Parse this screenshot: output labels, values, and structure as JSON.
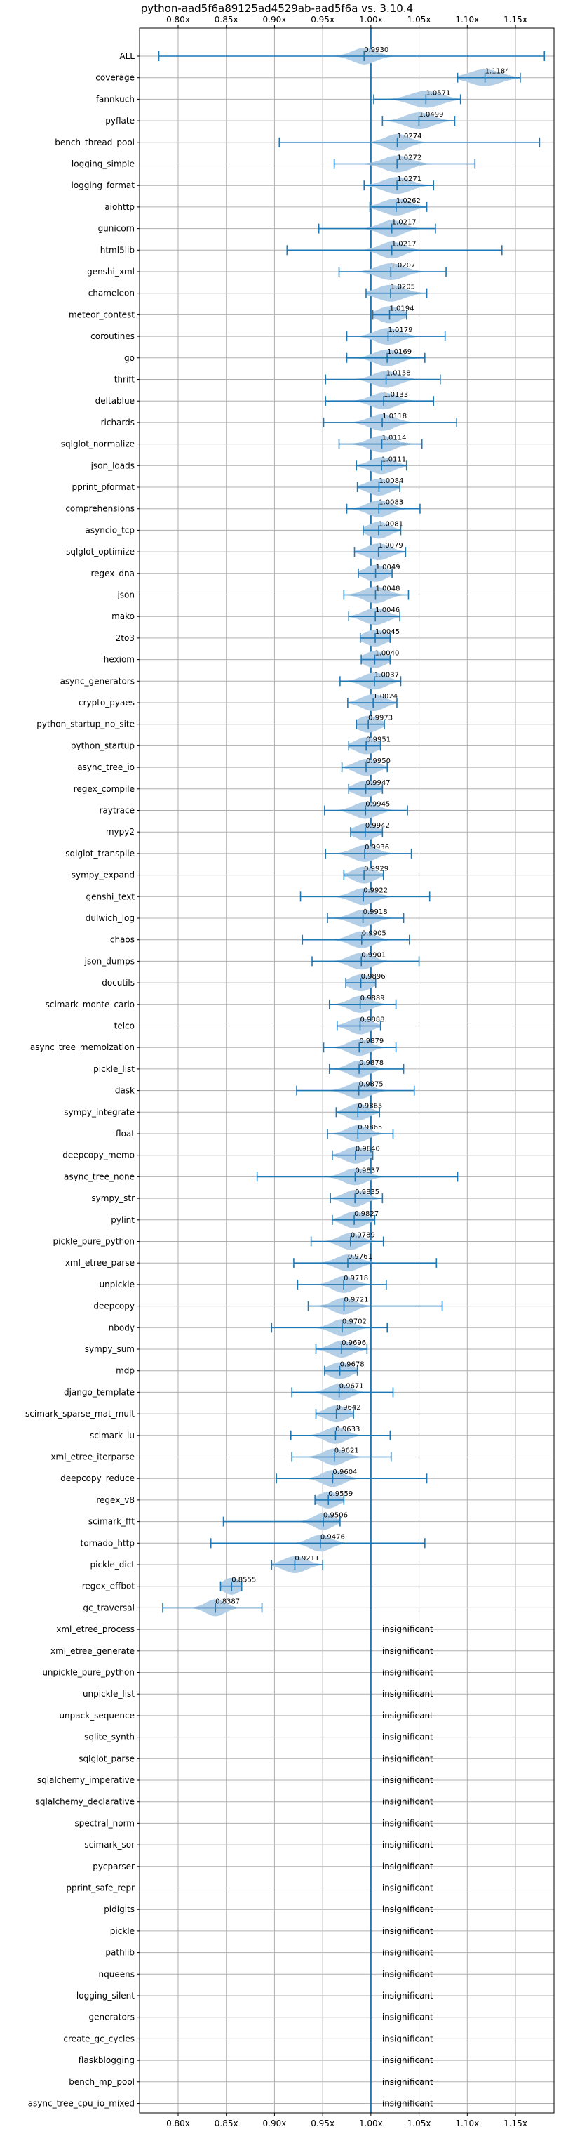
{
  "chart_data": {
    "type": "violin",
    "title": "python-aad5f6a89125ad4529ab-aad5f6a vs. 3.10.4",
    "xlabel": "",
    "ylabel": "",
    "xlim": [
      0.76,
      1.19
    ],
    "grid": true,
    "reference_line": 1.0,
    "x_ticks": [
      {
        "value": 0.8,
        "label": "0.80x"
      },
      {
        "value": 0.85,
        "label": "0.85x"
      },
      {
        "value": 0.9,
        "label": "0.90x"
      },
      {
        "value": 0.95,
        "label": "0.95x"
      },
      {
        "value": 1.0,
        "label": "1.00x"
      },
      {
        "value": 1.05,
        "label": "1.05x"
      },
      {
        "value": 1.1,
        "label": "1.10x"
      },
      {
        "value": 1.15,
        "label": "1.15x"
      }
    ],
    "colors": {
      "violin": "#b3cfe8",
      "line": "#1f77b4",
      "grid": "#b0b0b0",
      "text": "#000000"
    },
    "insignificant_label": "insignificant",
    "benchmarks": [
      {
        "name": "ALL",
        "mean": 0.993,
        "min": 0.78,
        "max": 1.18,
        "w": 0.012
      },
      {
        "name": "coverage",
        "mean": 1.1184,
        "min": 1.09,
        "max": 1.155,
        "w": 0.016
      },
      {
        "name": "fannkuch",
        "mean": 1.0571,
        "min": 1.003,
        "max": 1.093,
        "w": 0.016
      },
      {
        "name": "pyflate",
        "mean": 1.0499,
        "min": 1.012,
        "max": 1.087,
        "w": 0.014
      },
      {
        "name": "bench_thread_pool",
        "mean": 1.0274,
        "min": 0.905,
        "max": 1.175,
        "w": 0.012
      },
      {
        "name": "logging_simple",
        "mean": 1.0272,
        "min": 0.962,
        "max": 1.108,
        "w": 0.014
      },
      {
        "name": "logging_format",
        "mean": 1.0271,
        "min": 0.993,
        "max": 1.065,
        "w": 0.014
      },
      {
        "name": "aiohttp",
        "mean": 1.0262,
        "min": 0.999,
        "max": 1.058,
        "w": 0.014
      },
      {
        "name": "gunicorn",
        "mean": 1.0217,
        "min": 0.946,
        "max": 1.067,
        "w": 0.012
      },
      {
        "name": "html5lib",
        "mean": 1.0217,
        "min": 0.913,
        "max": 1.136,
        "w": 0.012
      },
      {
        "name": "genshi_xml",
        "mean": 1.0207,
        "min": 0.967,
        "max": 1.078,
        "w": 0.014
      },
      {
        "name": "chameleon",
        "mean": 1.0205,
        "min": 0.995,
        "max": 1.058,
        "w": 0.014
      },
      {
        "name": "meteor_contest",
        "mean": 1.0194,
        "min": 1.002,
        "max": 1.037,
        "w": 0.012
      },
      {
        "name": "coroutines",
        "mean": 1.0179,
        "min": 0.975,
        "max": 1.077,
        "w": 0.013
      },
      {
        "name": "go",
        "mean": 1.0169,
        "min": 0.975,
        "max": 1.056,
        "w": 0.013
      },
      {
        "name": "thrift",
        "mean": 1.0158,
        "min": 0.953,
        "max": 1.072,
        "w": 0.013
      },
      {
        "name": "deltablue",
        "mean": 1.0133,
        "min": 0.953,
        "max": 1.065,
        "w": 0.013
      },
      {
        "name": "richards",
        "mean": 1.0118,
        "min": 0.951,
        "max": 1.089,
        "w": 0.013
      },
      {
        "name": "sqlglot_normalize",
        "mean": 1.0114,
        "min": 0.967,
        "max": 1.053,
        "w": 0.013
      },
      {
        "name": "json_loads",
        "mean": 1.0111,
        "min": 0.985,
        "max": 1.037,
        "w": 0.012
      },
      {
        "name": "pprint_pformat",
        "mean": 1.0084,
        "min": 0.986,
        "max": 1.03,
        "w": 0.012
      },
      {
        "name": "comprehensions",
        "mean": 1.0083,
        "min": 0.975,
        "max": 1.051,
        "w": 0.012
      },
      {
        "name": "asyncio_tcp",
        "mean": 1.0081,
        "min": 0.992,
        "max": 1.031,
        "w": 0.011
      },
      {
        "name": "sqlglot_optimize",
        "mean": 1.0079,
        "min": 0.983,
        "max": 1.036,
        "w": 0.012
      },
      {
        "name": "regex_dna",
        "mean": 1.0049,
        "min": 0.987,
        "max": 1.022,
        "w": 0.011
      },
      {
        "name": "json",
        "mean": 1.0048,
        "min": 0.972,
        "max": 1.039,
        "w": 0.012
      },
      {
        "name": "mako",
        "mean": 1.0046,
        "min": 0.977,
        "max": 1.03,
        "w": 0.012
      },
      {
        "name": "2to3",
        "mean": 1.0045,
        "min": 0.989,
        "max": 1.02,
        "w": 0.011
      },
      {
        "name": "hexiom",
        "mean": 1.004,
        "min": 0.99,
        "max": 1.02,
        "w": 0.011
      },
      {
        "name": "async_generators",
        "mean": 1.0037,
        "min": 0.968,
        "max": 1.031,
        "w": 0.012
      },
      {
        "name": "crypto_pyaes",
        "mean": 1.0024,
        "min": 0.976,
        "max": 1.027,
        "w": 0.012
      },
      {
        "name": "python_startup_no_site",
        "mean": 0.9973,
        "min": 0.985,
        "max": 1.014,
        "w": 0.011
      },
      {
        "name": "python_startup",
        "mean": 0.9951,
        "min": 0.977,
        "max": 1.01,
        "w": 0.011
      },
      {
        "name": "async_tree_io",
        "mean": 0.995,
        "min": 0.97,
        "max": 1.017,
        "w": 0.011
      },
      {
        "name": "regex_compile",
        "mean": 0.9947,
        "min": 0.977,
        "max": 1.012,
        "w": 0.011
      },
      {
        "name": "raytrace",
        "mean": 0.9945,
        "min": 0.952,
        "max": 1.038,
        "w": 0.012
      },
      {
        "name": "mypy2",
        "mean": 0.9942,
        "min": 0.979,
        "max": 1.012,
        "w": 0.011
      },
      {
        "name": "sqlglot_transpile",
        "mean": 0.9936,
        "min": 0.953,
        "max": 1.042,
        "w": 0.012
      },
      {
        "name": "sympy_expand",
        "mean": 0.9929,
        "min": 0.972,
        "max": 1.013,
        "w": 0.011
      },
      {
        "name": "genshi_text",
        "mean": 0.9922,
        "min": 0.927,
        "max": 1.061,
        "w": 0.012
      },
      {
        "name": "dulwich_log",
        "mean": 0.9918,
        "min": 0.955,
        "max": 1.034,
        "w": 0.012
      },
      {
        "name": "chaos",
        "mean": 0.9905,
        "min": 0.929,
        "max": 1.04,
        "w": 0.012
      },
      {
        "name": "json_dumps",
        "mean": 0.9901,
        "min": 0.939,
        "max": 1.05,
        "w": 0.012
      },
      {
        "name": "docutils",
        "mean": 0.9896,
        "min": 0.974,
        "max": 1.005,
        "w": 0.011
      },
      {
        "name": "scimark_monte_carlo",
        "mean": 0.9889,
        "min": 0.957,
        "max": 1.026,
        "w": 0.011
      },
      {
        "name": "telco",
        "mean": 0.9888,
        "min": 0.965,
        "max": 1.01,
        "w": 0.011
      },
      {
        "name": "async_tree_memoization",
        "mean": 0.9879,
        "min": 0.951,
        "max": 1.026,
        "w": 0.011
      },
      {
        "name": "pickle_list",
        "mean": 0.9878,
        "min": 0.957,
        "max": 1.034,
        "w": 0.011
      },
      {
        "name": "dask",
        "mean": 0.9875,
        "min": 0.923,
        "max": 1.045,
        "w": 0.012
      },
      {
        "name": "sympy_integrate",
        "mean": 0.9865,
        "min": 0.964,
        "max": 1.009,
        "w": 0.011
      },
      {
        "name": "float",
        "mean": 0.9865,
        "min": 0.955,
        "max": 1.023,
        "w": 0.011
      },
      {
        "name": "deepcopy_memo",
        "mean": 0.984,
        "min": 0.96,
        "max": 1.002,
        "w": 0.011
      },
      {
        "name": "async_tree_none",
        "mean": 0.9837,
        "min": 0.882,
        "max": 1.09,
        "w": 0.012
      },
      {
        "name": "sympy_str",
        "mean": 0.9835,
        "min": 0.958,
        "max": 1.012,
        "w": 0.011
      },
      {
        "name": "pylint",
        "mean": 0.9827,
        "min": 0.96,
        "max": 1.004,
        "w": 0.011
      },
      {
        "name": "pickle_pure_python",
        "mean": 0.9789,
        "min": 0.938,
        "max": 1.013,
        "w": 0.011
      },
      {
        "name": "xml_etree_parse",
        "mean": 0.9761,
        "min": 0.92,
        "max": 1.068,
        "w": 0.012
      },
      {
        "name": "unpickle",
        "mean": 0.9718,
        "min": 0.924,
        "max": 1.016,
        "w": 0.011
      },
      {
        "name": "deepcopy",
        "mean": 0.9721,
        "min": 0.935,
        "max": 1.074,
        "w": 0.011
      },
      {
        "name": "nbody",
        "mean": 0.9702,
        "min": 0.897,
        "max": 1.017,
        "w": 0.011
      },
      {
        "name": "sympy_sum",
        "mean": 0.9696,
        "min": 0.943,
        "max": 0.996,
        "w": 0.011
      },
      {
        "name": "mdp",
        "mean": 0.9678,
        "min": 0.952,
        "max": 0.986,
        "w": 0.011
      },
      {
        "name": "django_template",
        "mean": 0.9671,
        "min": 0.918,
        "max": 1.023,
        "w": 0.011
      },
      {
        "name": "scimark_sparse_mat_mult",
        "mean": 0.9642,
        "min": 0.943,
        "max": 0.982,
        "w": 0.011
      },
      {
        "name": "scimark_lu",
        "mean": 0.9633,
        "min": 0.917,
        "max": 1.02,
        "w": 0.011
      },
      {
        "name": "xml_etree_iterparse",
        "mean": 0.9621,
        "min": 0.918,
        "max": 1.021,
        "w": 0.011
      },
      {
        "name": "deepcopy_reduce",
        "mean": 0.9604,
        "min": 0.902,
        "max": 1.058,
        "w": 0.011
      },
      {
        "name": "regex_v8",
        "mean": 0.9559,
        "min": 0.942,
        "max": 0.972,
        "w": 0.01
      },
      {
        "name": "scimark_fft",
        "mean": 0.9506,
        "min": 0.847,
        "max": 0.968,
        "w": 0.01
      },
      {
        "name": "tornado_http",
        "mean": 0.9476,
        "min": 0.834,
        "max": 1.056,
        "w": 0.011
      },
      {
        "name": "pickle_dict",
        "mean": 0.9211,
        "min": 0.897,
        "max": 0.95,
        "w": 0.012
      },
      {
        "name": "regex_effbot",
        "mean": 0.8555,
        "min": 0.844,
        "max": 0.866,
        "w": 0.009
      },
      {
        "name": "gc_traversal",
        "mean": 0.8387,
        "min": 0.784,
        "max": 0.887,
        "w": 0.01
      },
      {
        "name": "xml_etree_process",
        "insignificant": true
      },
      {
        "name": "xml_etree_generate",
        "insignificant": true
      },
      {
        "name": "unpickle_pure_python",
        "insignificant": true
      },
      {
        "name": "unpickle_list",
        "insignificant": true
      },
      {
        "name": "unpack_sequence",
        "insignificant": true
      },
      {
        "name": "sqlite_synth",
        "insignificant": true
      },
      {
        "name": "sqlglot_parse",
        "insignificant": true
      },
      {
        "name": "sqlalchemy_imperative",
        "insignificant": true
      },
      {
        "name": "sqlalchemy_declarative",
        "insignificant": true
      },
      {
        "name": "spectral_norm",
        "insignificant": true
      },
      {
        "name": "scimark_sor",
        "insignificant": true
      },
      {
        "name": "pycparser",
        "insignificant": true
      },
      {
        "name": "pprint_safe_repr",
        "insignificant": true
      },
      {
        "name": "pidigits",
        "insignificant": true
      },
      {
        "name": "pickle",
        "insignificant": true
      },
      {
        "name": "pathlib",
        "insignificant": true
      },
      {
        "name": "nqueens",
        "insignificant": true
      },
      {
        "name": "logging_silent",
        "insignificant": true
      },
      {
        "name": "generators",
        "insignificant": true
      },
      {
        "name": "create_gc_cycles",
        "insignificant": true
      },
      {
        "name": "flaskblogging",
        "insignificant": true
      },
      {
        "name": "bench_mp_pool",
        "insignificant": true
      },
      {
        "name": "async_tree_cpu_io_mixed",
        "insignificant": true
      }
    ]
  }
}
